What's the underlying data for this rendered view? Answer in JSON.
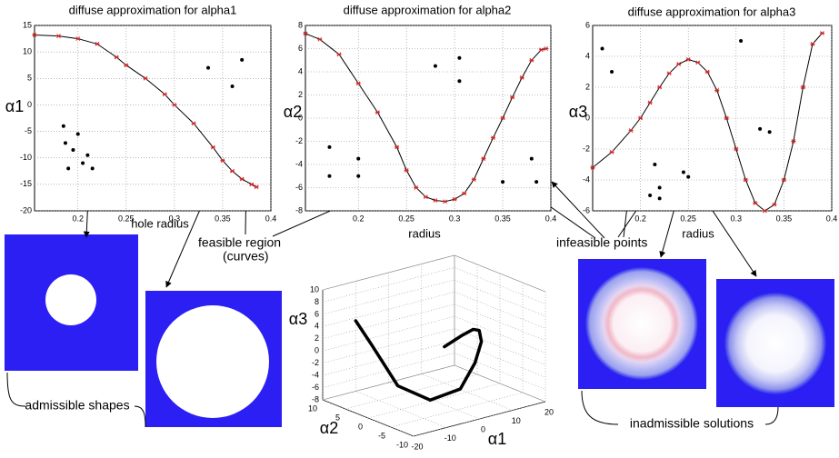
{
  "chart_data": [
    {
      "type": "line",
      "title": "diffuse approximation for alpha1",
      "xlabel": "hole radius",
      "ylabel": "α1",
      "xlim": [
        0.155,
        0.4
      ],
      "xticks": [
        0.2,
        0.25,
        0.3,
        0.35,
        0.4
      ],
      "ylim": [
        -20,
        15
      ],
      "yticks": [
        -20,
        -15,
        -10,
        -5,
        0,
        5,
        10,
        15
      ],
      "grid": true,
      "curve": {
        "color": "#000000",
        "marker_color": "#cc2222",
        "x": [
          0.155,
          0.18,
          0.2,
          0.22,
          0.24,
          0.25,
          0.27,
          0.29,
          0.3,
          0.32,
          0.34,
          0.35,
          0.36,
          0.37,
          0.38,
          0.385
        ],
        "values": [
          13.2,
          13,
          12.5,
          11.5,
          9,
          7.5,
          5,
          2,
          0,
          -3.5,
          -8,
          -10.5,
          -12.5,
          -14,
          -15,
          -15.5
        ]
      },
      "points": {
        "color": "#000000",
        "x": [
          0.185,
          0.187,
          0.19,
          0.195,
          0.2,
          0.205,
          0.21,
          0.215,
          0.335,
          0.36,
          0.37
        ],
        "values": [
          -4,
          -7.2,
          -12,
          -8.5,
          -5.5,
          -11,
          -9.5,
          -12,
          7,
          3.5,
          8.5
        ]
      }
    },
    {
      "type": "line",
      "title": "diffuse approximation for alpha2",
      "xlabel": "radius",
      "ylabel": "α2",
      "xlim": [
        0.145,
        0.4
      ],
      "xticks": [
        0.2,
        0.25,
        0.3,
        0.35,
        0.4
      ],
      "ylim": [
        -8,
        8
      ],
      "yticks": [
        -8,
        -6,
        -4,
        -2,
        0,
        2,
        4,
        6,
        8
      ],
      "grid": true,
      "curve": {
        "color": "#000000",
        "marker_color": "#cc2222",
        "x": [
          0.145,
          0.16,
          0.18,
          0.2,
          0.22,
          0.24,
          0.25,
          0.26,
          0.27,
          0.28,
          0.29,
          0.3,
          0.31,
          0.32,
          0.33,
          0.34,
          0.35,
          0.36,
          0.37,
          0.38,
          0.39,
          0.395
        ],
        "values": [
          7.3,
          6.8,
          5.5,
          3,
          0.5,
          -2.5,
          -4.5,
          -6,
          -6.8,
          -7.1,
          -7.2,
          -7,
          -6.5,
          -5.3,
          -3.5,
          -1.7,
          0,
          1.8,
          3.5,
          5,
          5.9,
          6
        ]
      },
      "points": {
        "color": "#000000",
        "x": [
          0.17,
          0.17,
          0.2,
          0.2,
          0.28,
          0.305,
          0.305,
          0.35,
          0.38,
          0.385
        ],
        "values": [
          -2.5,
          -5,
          -3.5,
          -5,
          4.5,
          5.2,
          3.2,
          -5.5,
          -3.5,
          -5.5
        ]
      }
    },
    {
      "type": "line",
      "title": "diffuse approximation for alpha3",
      "xlabel": "radius",
      "ylabel": "α3",
      "xlim": [
        0.15,
        0.4
      ],
      "xticks": [
        0.2,
        0.25,
        0.3,
        0.35,
        0.4
      ],
      "ylim": [
        -6,
        6
      ],
      "yticks": [
        -6,
        -4,
        -2,
        0,
        2,
        4,
        6
      ],
      "grid": true,
      "curve": {
        "color": "#000000",
        "marker_color": "#cc2222",
        "x": [
          0.15,
          0.17,
          0.19,
          0.2,
          0.21,
          0.22,
          0.23,
          0.24,
          0.25,
          0.26,
          0.27,
          0.28,
          0.29,
          0.3,
          0.31,
          0.32,
          0.33,
          0.34,
          0.35,
          0.36,
          0.37,
          0.38,
          0.39
        ],
        "values": [
          -3.2,
          -2.2,
          -0.8,
          0,
          1,
          2,
          2.9,
          3.5,
          3.8,
          3.6,
          3,
          1.8,
          0,
          -2,
          -4,
          -5.5,
          -6,
          -5.6,
          -4,
          -1.5,
          2,
          4.8,
          5.5
        ]
      },
      "points": {
        "color": "#000000",
        "x": [
          0.16,
          0.17,
          0.305,
          0.325,
          0.335,
          0.215,
          0.21,
          0.22,
          0.22,
          0.245,
          0.25
        ],
        "values": [
          4.5,
          3,
          5,
          -0.7,
          -0.9,
          -3,
          -5,
          -4.5,
          -5.2,
          -3.5,
          -3.8
        ]
      }
    },
    {
      "type": "line3d",
      "xlabel": "α1",
      "ylabel": "α2",
      "zlabel": "α3",
      "xlim": [
        -20,
        20
      ],
      "xticks": [
        -20,
        -10,
        0,
        10,
        20
      ],
      "ylim": [
        -10,
        10
      ],
      "yticks": [
        -10,
        -5,
        0,
        5,
        10
      ],
      "zlim": [
        -8,
        10
      ],
      "zticks": [
        -8,
        -6,
        -4,
        -2,
        0,
        2,
        4,
        6,
        8,
        10
      ],
      "grid": true,
      "color": "#000000",
      "x": [
        13.2,
        12.5,
        10.5,
        7.5,
        5,
        2.5,
        -1,
        -6,
        -11,
        -14,
        -15.5
      ],
      "y": [
        7.3,
        3,
        -1,
        -4.5,
        -6.8,
        -7.2,
        -6.5,
        -3.5,
        0,
        3.5,
        6
      ],
      "z": [
        -3.2,
        0,
        2.5,
        3.8,
        3,
        0,
        -4,
        -6,
        -4,
        2,
        5.5
      ]
    }
  ],
  "annotations": [
    "feasible region",
    "(curves)",
    "infeasible points",
    "admissible shapes",
    "inadmissible solutions"
  ]
}
